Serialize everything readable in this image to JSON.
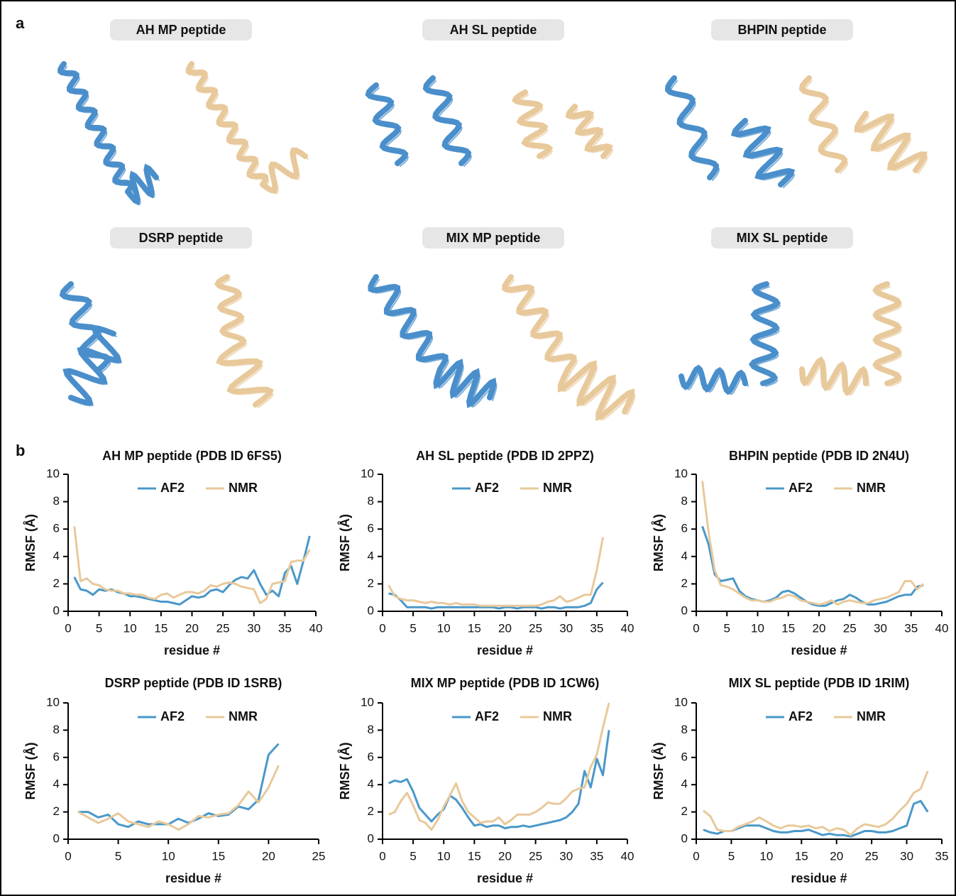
{
  "panel_a_label": "a",
  "structure_titles": [
    "AH MP peptide",
    "AH SL peptide",
    "BHPIN peptide",
    "DSRP peptide",
    "MIX MP peptide",
    "MIX SL peptide"
  ],
  "panel_b_label": "b",
  "chart_data": [
    {
      "type": "line",
      "title": "AH MP peptide (PDB ID 6FS5)",
      "x_label": "residue #",
      "y_label": "RMSF (Å)",
      "legend": "top",
      "x": [
        1,
        2,
        3,
        4,
        5,
        6,
        7,
        8,
        9,
        10,
        11,
        12,
        13,
        14,
        15,
        16,
        17,
        18,
        19,
        20,
        21,
        22,
        23,
        24,
        25,
        26,
        27,
        28,
        29,
        30,
        31,
        32,
        33,
        34,
        35,
        36,
        37,
        38,
        39
      ],
      "series": [
        {
          "name": "AF2",
          "color": "#4a98c9",
          "values": [
            2.5,
            1.6,
            1.5,
            1.2,
            1.6,
            1.5,
            1.6,
            1.4,
            1.3,
            1.1,
            1.1,
            1.0,
            0.9,
            0.8,
            0.7,
            0.7,
            0.6,
            0.5,
            0.8,
            1.1,
            1.0,
            1.1,
            1.5,
            1.6,
            1.4,
            1.9,
            2.3,
            2.5,
            2.4,
            3.0,
            2.0,
            1.2,
            1.5,
            1.1,
            2.8,
            3.3,
            2.0,
            3.7,
            5.5
          ]
        },
        {
          "name": "NMR",
          "color": "#e8c99b",
          "values": [
            6.2,
            2.2,
            2.4,
            2.0,
            1.9,
            1.6,
            1.5,
            1.5,
            1.3,
            1.3,
            1.2,
            1.2,
            1.0,
            0.9,
            1.2,
            1.3,
            1.0,
            1.2,
            1.4,
            1.4,
            1.3,
            1.5,
            1.9,
            1.8,
            2.0,
            2.1,
            2.0,
            1.8,
            1.7,
            1.6,
            0.6,
            0.9,
            2.0,
            2.1,
            2.2,
            3.6,
            3.7,
            3.7,
            4.5
          ]
        }
      ],
      "xlim": [
        0,
        40
      ],
      "xticks": [
        0,
        5,
        10,
        15,
        20,
        25,
        30,
        35,
        40
      ],
      "ylim": [
        0,
        10
      ],
      "yticks": [
        0,
        2,
        4,
        6,
        8,
        10
      ]
    },
    {
      "type": "line",
      "title": "AH SL peptide (PDB ID 2PPZ)",
      "x_label": "residue #",
      "y_label": "RMSF (Å)",
      "legend": "top",
      "x": [
        1,
        2,
        3,
        4,
        5,
        6,
        7,
        8,
        9,
        10,
        11,
        12,
        13,
        14,
        15,
        16,
        17,
        18,
        19,
        20,
        21,
        22,
        23,
        24,
        25,
        26,
        27,
        28,
        29,
        30,
        31,
        32,
        33,
        34,
        35,
        36
      ],
      "series": [
        {
          "name": "AF2",
          "color": "#4a98c9",
          "values": [
            1.3,
            1.2,
            0.8,
            0.3,
            0.3,
            0.3,
            0.3,
            0.2,
            0.3,
            0.3,
            0.3,
            0.3,
            0.3,
            0.3,
            0.3,
            0.3,
            0.3,
            0.3,
            0.2,
            0.3,
            0.3,
            0.2,
            0.3,
            0.3,
            0.3,
            0.2,
            0.3,
            0.3,
            0.2,
            0.3,
            0.3,
            0.3,
            0.4,
            0.6,
            1.6,
            2.1
          ]
        },
        {
          "name": "NMR",
          "color": "#e8c99b",
          "values": [
            1.9,
            1.1,
            0.9,
            0.8,
            0.8,
            0.7,
            0.6,
            0.7,
            0.6,
            0.6,
            0.5,
            0.6,
            0.5,
            0.5,
            0.5,
            0.4,
            0.4,
            0.4,
            0.4,
            0.4,
            0.4,
            0.4,
            0.4,
            0.4,
            0.4,
            0.5,
            0.7,
            0.8,
            1.1,
            0.7,
            0.8,
            1.0,
            1.2,
            1.2,
            3.0,
            5.4
          ]
        }
      ],
      "xlim": [
        0,
        40
      ],
      "xticks": [
        0,
        5,
        10,
        15,
        20,
        25,
        30,
        35,
        40
      ],
      "ylim": [
        0,
        10
      ],
      "yticks": [
        0,
        2,
        4,
        6,
        8,
        10
      ]
    },
    {
      "type": "line",
      "title": "BHPIN peptide (PDB ID 2N4U)",
      "x_label": "residue #",
      "y_label": "RMSF (Å)",
      "legend": "top",
      "x": [
        1,
        2,
        3,
        4,
        5,
        6,
        7,
        8,
        9,
        10,
        11,
        12,
        13,
        14,
        15,
        16,
        17,
        18,
        19,
        20,
        21,
        22,
        23,
        24,
        25,
        26,
        27,
        28,
        29,
        30,
        31,
        32,
        33,
        34,
        35,
        36,
        37
      ],
      "series": [
        {
          "name": "AF2",
          "color": "#4a98c9",
          "values": [
            6.2,
            4.9,
            2.7,
            2.2,
            2.3,
            2.4,
            1.5,
            1.1,
            0.9,
            0.8,
            0.7,
            0.8,
            1.0,
            1.4,
            1.5,
            1.3,
            1.0,
            0.7,
            0.5,
            0.4,
            0.4,
            0.6,
            0.8,
            0.9,
            1.2,
            1.0,
            0.7,
            0.5,
            0.5,
            0.6,
            0.7,
            0.9,
            1.1,
            1.2,
            1.2,
            1.8,
            1.9
          ]
        },
        {
          "name": "NMR",
          "color": "#e8c99b",
          "values": [
            9.5,
            5.8,
            3.0,
            1.9,
            1.8,
            1.6,
            1.3,
            1.0,
            0.8,
            0.8,
            0.7,
            0.7,
            0.9,
            1.0,
            1.2,
            1.1,
            0.8,
            0.7,
            0.6,
            0.5,
            0.6,
            0.8,
            0.5,
            0.7,
            0.8,
            0.7,
            0.6,
            0.6,
            0.8,
            0.9,
            1.0,
            1.2,
            1.4,
            2.2,
            2.2,
            1.6,
            2.0
          ]
        }
      ],
      "xlim": [
        0,
        40
      ],
      "xticks": [
        0,
        5,
        10,
        15,
        20,
        25,
        30,
        35,
        40
      ],
      "ylim": [
        0,
        10
      ],
      "yticks": [
        0,
        2,
        4,
        6,
        8,
        10
      ]
    },
    {
      "type": "line",
      "title": "DSRP peptide (PDB ID 1SRB)",
      "x_label": "residue #",
      "y_label": "RMSF (Å)",
      "legend": "top",
      "x": [
        1,
        2,
        3,
        4,
        5,
        6,
        7,
        8,
        9,
        10,
        11,
        12,
        13,
        14,
        15,
        16,
        17,
        18,
        19,
        20,
        21
      ],
      "series": [
        {
          "name": "AF2",
          "color": "#4a98c9",
          "values": [
            2.0,
            2.0,
            1.6,
            1.8,
            1.1,
            0.9,
            1.3,
            1.1,
            1.1,
            1.1,
            1.5,
            1.2,
            1.5,
            1.9,
            1.7,
            1.8,
            2.4,
            2.2,
            2.9,
            6.2,
            7.0
          ]
        },
        {
          "name": "NMR",
          "color": "#e8c99b",
          "values": [
            2.0,
            1.6,
            1.2,
            1.5,
            1.9,
            1.3,
            1.1,
            0.9,
            1.3,
            1.1,
            0.7,
            1.1,
            1.7,
            1.6,
            1.8,
            1.9,
            2.5,
            3.5,
            2.7,
            3.8,
            5.4
          ]
        }
      ],
      "xlim": [
        0,
        25
      ],
      "xticks": [
        0,
        5,
        10,
        15,
        20,
        25
      ],
      "ylim": [
        0,
        10
      ],
      "yticks": [
        0,
        2,
        4,
        6,
        8,
        10
      ]
    },
    {
      "type": "line",
      "title": "MIX MP peptide (PDB ID 1CW6)",
      "x_label": "residue #",
      "y_label": "RMSF (Å)",
      "legend": "top",
      "x": [
        1,
        2,
        3,
        4,
        5,
        6,
        7,
        8,
        9,
        10,
        11,
        12,
        13,
        14,
        15,
        16,
        17,
        18,
        19,
        20,
        21,
        22,
        23,
        24,
        25,
        26,
        27,
        28,
        29,
        30,
        31,
        32,
        33,
        34,
        35,
        36,
        37
      ],
      "series": [
        {
          "name": "AF2",
          "color": "#4a98c9",
          "values": [
            4.1,
            4.3,
            4.2,
            4.4,
            3.5,
            2.3,
            1.8,
            1.3,
            1.8,
            2.2,
            3.2,
            2.9,
            2.3,
            1.6,
            1.0,
            1.1,
            0.9,
            1.0,
            1.0,
            0.8,
            0.9,
            0.9,
            1.0,
            0.9,
            1.0,
            1.1,
            1.2,
            1.3,
            1.4,
            1.6,
            2.0,
            2.6,
            5.0,
            3.8,
            5.9,
            4.7,
            8.0
          ]
        },
        {
          "name": "NMR",
          "color": "#e8c99b",
          "values": [
            1.8,
            2.0,
            2.8,
            3.4,
            2.5,
            1.4,
            1.2,
            0.7,
            1.4,
            2.4,
            3.2,
            4.1,
            2.8,
            2.0,
            1.6,
            1.2,
            1.3,
            1.3,
            1.6,
            1.1,
            1.4,
            1.8,
            1.8,
            1.8,
            2.0,
            2.3,
            2.7,
            2.6,
            2.6,
            3.0,
            3.5,
            3.7,
            3.8,
            5.3,
            6.2,
            8.2,
            10.0
          ]
        }
      ],
      "xlim": [
        0,
        40
      ],
      "xticks": [
        0,
        5,
        10,
        15,
        20,
        25,
        30,
        35,
        40
      ],
      "ylim": [
        0,
        10
      ],
      "yticks": [
        0,
        2,
        4,
        6,
        8,
        10
      ]
    },
    {
      "type": "line",
      "title": "MIX SL peptide (PDB ID 1RIM)",
      "x_label": "residue #",
      "y_label": "RMSF (Å)",
      "legend": "top",
      "x": [
        1,
        2,
        3,
        4,
        5,
        6,
        7,
        8,
        9,
        10,
        11,
        12,
        13,
        14,
        15,
        16,
        17,
        18,
        19,
        20,
        21,
        22,
        23,
        24,
        25,
        26,
        27,
        28,
        29,
        30,
        31,
        32,
        33
      ],
      "series": [
        {
          "name": "AF2",
          "color": "#4a98c9",
          "values": [
            0.7,
            0.5,
            0.4,
            0.6,
            0.6,
            0.8,
            1.0,
            1.0,
            1.0,
            0.8,
            0.6,
            0.5,
            0.5,
            0.6,
            0.6,
            0.7,
            0.5,
            0.3,
            0.4,
            0.3,
            0.3,
            0.2,
            0.4,
            0.6,
            0.6,
            0.5,
            0.5,
            0.6,
            0.8,
            1.0,
            2.6,
            2.8,
            2.0
          ]
        },
        {
          "name": "NMR",
          "color": "#e8c99b",
          "values": [
            2.1,
            1.7,
            0.7,
            0.6,
            0.6,
            0.9,
            1.1,
            1.3,
            1.6,
            1.3,
            1.0,
            0.8,
            1.0,
            1.0,
            0.9,
            1.0,
            0.8,
            0.9,
            0.6,
            0.8,
            0.7,
            0.3,
            0.8,
            1.1,
            1.0,
            0.9,
            1.1,
            1.5,
            2.1,
            2.6,
            3.4,
            3.7,
            5.0
          ]
        }
      ],
      "xlim": [
        0,
        35
      ],
      "xticks": [
        0,
        5,
        10,
        15,
        20,
        25,
        30,
        35
      ],
      "ylim": [
        0,
        10
      ],
      "yticks": [
        0,
        2,
        4,
        6,
        8,
        10
      ]
    }
  ]
}
